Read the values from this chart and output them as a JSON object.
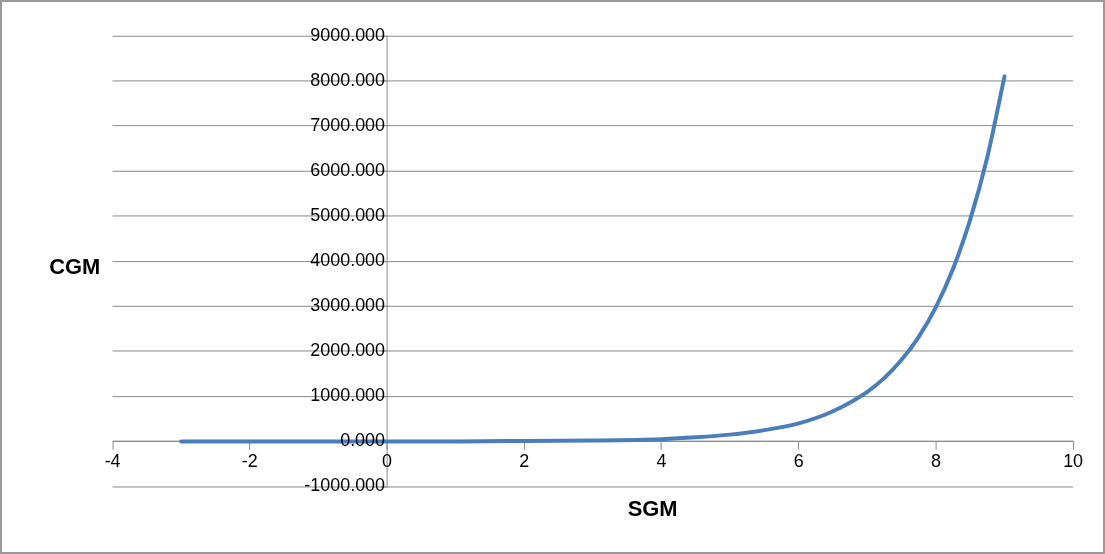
{
  "chart_data": {
    "type": "line",
    "xlabel": "SGM",
    "ylabel": "CGM",
    "series": [
      {
        "color": "#4a7ebb",
        "x": [
          -3,
          -2,
          -1,
          0,
          1,
          2,
          3,
          4,
          4.5,
          5,
          5.5,
          6,
          6.5,
          7,
          7.25,
          7.5,
          7.75,
          8,
          8.25,
          8.5,
          8.75,
          9
        ],
        "values": [
          0,
          0,
          0,
          0,
          0,
          10,
          20,
          50,
          90,
          150,
          250,
          400,
          670,
          1100,
          1410,
          1810,
          2320,
          2980,
          3830,
          4920,
          6310,
          8100
        ]
      }
    ],
    "xlim": [
      -4,
      10
    ],
    "xticks": [
      -4,
      -2,
      0,
      2,
      4,
      6,
      8,
      10
    ],
    "ylim": [
      -1000,
      9000
    ],
    "yticks": [
      {
        "value": -1000,
        "label": "-1000.000"
      },
      {
        "value": 0,
        "label": "0.000"
      },
      {
        "value": 1000,
        "label": "1000.000"
      },
      {
        "value": 2000,
        "label": "2000.000"
      },
      {
        "value": 3000,
        "label": "3000.000"
      },
      {
        "value": 4000,
        "label": "4000.000"
      },
      {
        "value": 5000,
        "label": "5000.000"
      },
      {
        "value": 6000,
        "label": "6000.000"
      },
      {
        "value": 7000,
        "label": "7000.000"
      },
      {
        "value": 8000,
        "label": "8000.000"
      },
      {
        "value": 9000,
        "label": "9000.000"
      }
    ],
    "grid": "y",
    "legend": false,
    "marker": "none",
    "line_style": "solid"
  }
}
